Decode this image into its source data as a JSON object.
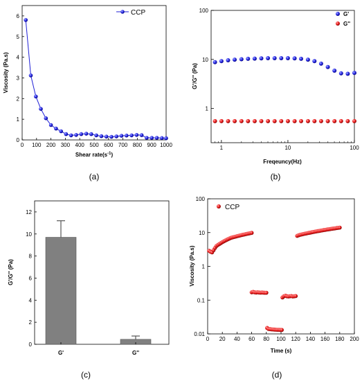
{
  "chart_data": [
    {
      "type": "line",
      "panel_label": "(a)",
      "xlabel_main": "Shear rate(s",
      "xlabel_sup": "-1",
      "xlabel_end": ")",
      "ylabel": "Viscosity (Pa.s)",
      "xlim": [
        0,
        1000
      ],
      "ylim": [
        0,
        6.5
      ],
      "xticks": [
        0,
        100,
        200,
        300,
        400,
        500,
        600,
        700,
        800,
        900,
        1000
      ],
      "yticks": [
        0,
        1,
        2,
        3,
        4,
        5,
        6
      ],
      "legend": [
        "CCP"
      ],
      "legend_position": "top-right",
      "series": [
        {
          "name": "CCP",
          "color": "#1f1fd6",
          "x": [
            25,
            60,
            95,
            130,
            165,
            200,
            235,
            270,
            305,
            340,
            375,
            410,
            445,
            480,
            515,
            550,
            585,
            620,
            655,
            690,
            725,
            760,
            795,
            830,
            865,
            900,
            935,
            970,
            1000
          ],
          "y": [
            5.8,
            3.12,
            2.1,
            1.5,
            1.05,
            0.72,
            0.55,
            0.42,
            0.28,
            0.22,
            0.24,
            0.28,
            0.3,
            0.28,
            0.22,
            0.18,
            0.16,
            0.15,
            0.17,
            0.2,
            0.21,
            0.22,
            0.24,
            0.23,
            0.1,
            0.1,
            0.1,
            0.09,
            0.08
          ]
        }
      ]
    },
    {
      "type": "scatter",
      "panel_label": "(b)",
      "xlabel": "Freqeuncy(Hz)",
      "ylabel": "G'/G'' (Pa)",
      "xscale": "log",
      "yscale": "log",
      "xlim": [
        0.7,
        100
      ],
      "ylim": [
        0.2,
        100
      ],
      "xticks": [
        1,
        10,
        100
      ],
      "xtick_labels": [
        "1",
        "10",
        "100"
      ],
      "yticks": [
        1,
        10,
        100
      ],
      "ytick_labels": [
        "1",
        "10",
        "100"
      ],
      "legend": [
        "G'",
        "G''"
      ],
      "legend_position": "top-right",
      "series": [
        {
          "name": "G'",
          "color": "#1f1fd6",
          "x": [
            0.8,
            1.0,
            1.26,
            1.58,
            2.0,
            2.51,
            3.16,
            3.98,
            5.01,
            6.31,
            7.94,
            10.0,
            12.6,
            15.8,
            20.0,
            25.1,
            31.6,
            39.8,
            50.1,
            63.1,
            79.4,
            100
          ],
          "y": [
            8.8,
            9.2,
            9.6,
            9.9,
            10.1,
            10.3,
            10.4,
            10.5,
            10.6,
            10.6,
            10.6,
            10.6,
            10.5,
            10.3,
            9.9,
            9.2,
            8.2,
            7.0,
            5.9,
            5.2,
            5.1,
            5.3
          ]
        },
        {
          "name": "G''",
          "color": "#e01f1f",
          "x": [
            0.8,
            1.0,
            1.26,
            1.58,
            2.0,
            2.51,
            3.16,
            3.98,
            5.01,
            6.31,
            7.94,
            10.0,
            12.6,
            15.8,
            20.0,
            25.1,
            31.6,
            39.8,
            50.1,
            63.1,
            79.4,
            100
          ],
          "y": [
            0.55,
            0.55,
            0.55,
            0.55,
            0.55,
            0.55,
            0.55,
            0.55,
            0.55,
            0.55,
            0.55,
            0.55,
            0.55,
            0.55,
            0.55,
            0.55,
            0.55,
            0.55,
            0.55,
            0.55,
            0.55,
            0.55
          ]
        }
      ]
    },
    {
      "type": "bar",
      "panel_label": "(c)",
      "xlabel": "",
      "ylabel": "G'/G'' (Pa)",
      "categories": [
        "G'",
        "G''"
      ],
      "values": [
        9.7,
        0.45
      ],
      "errors": [
        1.5,
        0.3
      ],
      "ylim": [
        0,
        13
      ],
      "yticks": [
        0,
        2,
        4,
        6,
        8,
        10,
        12
      ],
      "color": "#808080"
    },
    {
      "type": "scatter",
      "panel_label": "(d)",
      "xlabel": "Time (s)",
      "ylabel": "Viscosity (Pa.s)",
      "yscale": "log",
      "xlim": [
        0,
        200
      ],
      "ylim": [
        0.01,
        100
      ],
      "xticks": [
        0,
        20,
        40,
        60,
        80,
        100,
        120,
        140,
        160,
        180,
        200
      ],
      "yticks": [
        0.01,
        0.1,
        1,
        10,
        100
      ],
      "ytick_labels": [
        "0.01",
        "0.1",
        "1",
        "10",
        "100"
      ],
      "legend": [
        "CCP"
      ],
      "legend_position": "top-left",
      "series": [
        {
          "name": "CCP",
          "color": "#e01f1f",
          "segments": [
            {
              "x": [
                2,
                4,
                6,
                8,
                10,
                12,
                14,
                16,
                18,
                20,
                22,
                24,
                26,
                28,
                30,
                32,
                34,
                36,
                38,
                40,
                42,
                44,
                46,
                48,
                50,
                52,
                54,
                56,
                58,
                60
              ],
              "y": [
                2.9,
                2.7,
                2.6,
                3.0,
                3.5,
                4.0,
                4.3,
                4.6,
                4.9,
                5.2,
                5.5,
                5.8,
                6.1,
                6.4,
                6.7,
                7.0,
                7.2,
                7.4,
                7.6,
                7.8,
                8.0,
                8.2,
                8.4,
                8.6,
                8.8,
                9.0,
                9.2,
                9.4,
                9.6,
                9.8
              ]
            },
            {
              "x": [
                60,
                62,
                64,
                66,
                68,
                70,
                72,
                74,
                76,
                78,
                80
              ],
              "y": [
                0.17,
                0.175,
                0.17,
                0.168,
                0.17,
                0.168,
                0.166,
                0.168,
                0.166,
                0.165,
                0.165
              ]
            },
            {
              "x": [
                81,
                83,
                85,
                87,
                89,
                91,
                93,
                95,
                97,
                99,
                101
              ],
              "y": [
                0.015,
                0.014,
                0.0138,
                0.0136,
                0.0135,
                0.0134,
                0.0133,
                0.0132,
                0.0132,
                0.0131,
                0.0131
              ]
            },
            {
              "x": [
                102,
                104,
                106,
                108,
                110,
                112,
                114,
                116,
                118,
                120
              ],
              "y": [
                0.12,
                0.13,
                0.135,
                0.13,
                0.128,
                0.13,
                0.132,
                0.128,
                0.13,
                0.132
              ]
            },
            {
              "x": [
                122,
                124,
                126,
                128,
                130,
                132,
                134,
                136,
                138,
                140,
                142,
                144,
                146,
                148,
                150,
                152,
                154,
                156,
                158,
                160,
                162,
                164,
                166,
                168,
                170,
                172,
                174,
                176,
                178,
                180
              ],
              "y": [
                8.0,
                8.3,
                8.6,
                8.8,
                9.0,
                9.2,
                9.4,
                9.6,
                9.8,
                10.0,
                10.2,
                10.4,
                10.6,
                10.8,
                11.0,
                11.2,
                11.4,
                11.6,
                11.8,
                12.0,
                12.2,
                12.4,
                12.6,
                12.8,
                13.0,
                13.2,
                13.4,
                13.6,
                13.8,
                14.0
              ]
            }
          ]
        }
      ]
    }
  ]
}
